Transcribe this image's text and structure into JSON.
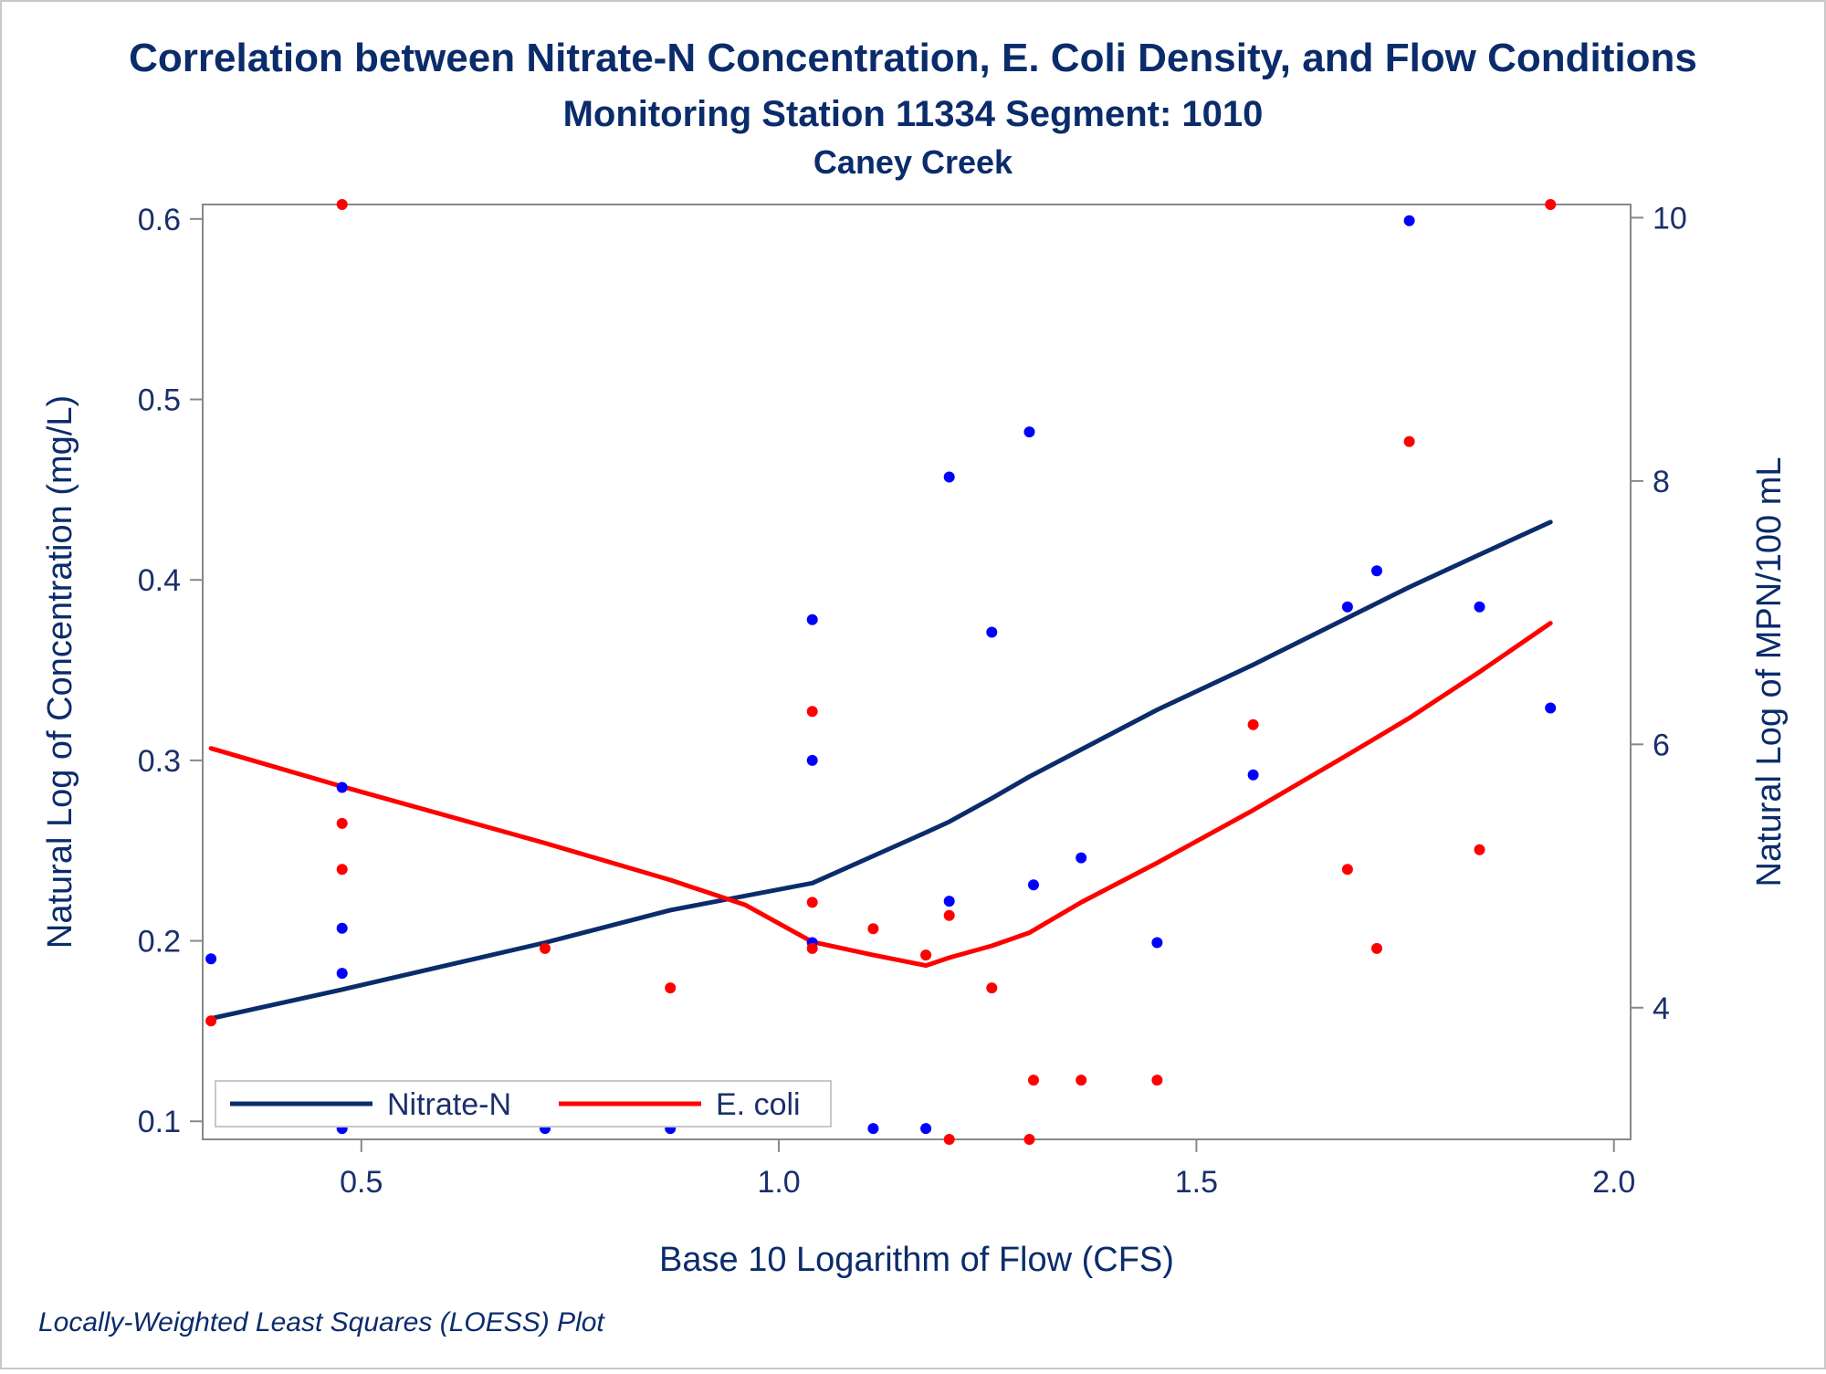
{
  "chart_data": {
    "type": "scatter",
    "title": "Correlation between Nitrate-N Concentration, E. Coli Density, and Flow Conditions",
    "subtitle": "Monitoring Station 11334 Segment: 1010",
    "subtitle2": "Caney Creek",
    "footnote": "Locally-Weighted Least Squares (LOESS) Plot",
    "xlabel": "Base 10 Logarithm of Flow (CFS)",
    "ylabel": "Natural Log of Concentration (mg/L)",
    "y2label": "Natural Log of MPN/100 mL",
    "xlim": [
      0.31,
      2.02
    ],
    "ylim": [
      0.09,
      0.608
    ],
    "y2lim": [
      3,
      10.1
    ],
    "xticks": [
      "0.5",
      "1.0",
      "1.5",
      "2.0"
    ],
    "xtick_values": [
      0.5,
      1.0,
      1.5,
      2.0
    ],
    "yticks": [
      "0.1",
      "0.2",
      "0.3",
      "0.4",
      "0.5",
      "0.6"
    ],
    "ytick_values": [
      0.1,
      0.2,
      0.3,
      0.4,
      0.5,
      0.6
    ],
    "y2ticks": [
      "4",
      "6",
      "8",
      "10"
    ],
    "y2tick_values": [
      4,
      6,
      8,
      10
    ],
    "grid": false,
    "legend_position": "bottom-left",
    "series": [
      {
        "name": "Nitrate-N",
        "axis": "left",
        "color": "#0000ff",
        "line_color": "#0b2c6b",
        "points": [
          [
            0.32,
            0.19
          ],
          [
            0.477,
            0.285
          ],
          [
            0.477,
            0.207
          ],
          [
            0.477,
            0.182
          ],
          [
            0.477,
            0.096
          ],
          [
            0.72,
            0.096
          ],
          [
            0.87,
            0.096
          ],
          [
            1.04,
            0.378
          ],
          [
            1.04,
            0.3
          ],
          [
            1.04,
            0.199
          ],
          [
            1.113,
            0.096
          ],
          [
            1.176,
            0.096
          ],
          [
            1.204,
            0.457
          ],
          [
            1.204,
            0.222
          ],
          [
            1.255,
            0.371
          ],
          [
            1.3,
            0.482
          ],
          [
            1.305,
            0.231
          ],
          [
            1.362,
            0.246
          ],
          [
            1.453,
            0.199
          ],
          [
            1.568,
            0.292
          ],
          [
            1.681,
            0.385
          ],
          [
            1.716,
            0.405
          ],
          [
            1.755,
            0.599
          ],
          [
            1.839,
            0.385
          ],
          [
            1.924,
            0.329
          ]
        ],
        "loess": [
          [
            0.32,
            0.157
          ],
          [
            0.477,
            0.173
          ],
          [
            0.72,
            0.199
          ],
          [
            0.87,
            0.217
          ],
          [
            1.04,
            0.232
          ],
          [
            1.113,
            0.247
          ],
          [
            1.176,
            0.26
          ],
          [
            1.204,
            0.266
          ],
          [
            1.255,
            0.279
          ],
          [
            1.3,
            0.291
          ],
          [
            1.362,
            0.306
          ],
          [
            1.453,
            0.328
          ],
          [
            1.568,
            0.353
          ],
          [
            1.681,
            0.379
          ],
          [
            1.755,
            0.396
          ],
          [
            1.839,
            0.414
          ],
          [
            1.924,
            0.432
          ]
        ]
      },
      {
        "name": "E. coli",
        "axis": "right",
        "color": "#ff0000",
        "line_color": "#ff0000",
        "points": [
          [
            0.32,
            3.9
          ],
          [
            0.477,
            10.1
          ],
          [
            0.477,
            5.4
          ],
          [
            0.477,
            5.05
          ],
          [
            0.72,
            4.45
          ],
          [
            0.87,
            4.15
          ],
          [
            1.04,
            6.25
          ],
          [
            1.04,
            4.8
          ],
          [
            1.04,
            4.45
          ],
          [
            1.113,
            4.6
          ],
          [
            1.176,
            4.4
          ],
          [
            1.204,
            4.7
          ],
          [
            1.204,
            3.0
          ],
          [
            1.255,
            4.15
          ],
          [
            1.3,
            3.0
          ],
          [
            1.305,
            3.45
          ],
          [
            1.362,
            3.45
          ],
          [
            1.453,
            3.45
          ],
          [
            1.568,
            6.15
          ],
          [
            1.681,
            5.05
          ],
          [
            1.716,
            4.45
          ],
          [
            1.755,
            8.3
          ],
          [
            1.839,
            5.2
          ],
          [
            1.924,
            10.1
          ]
        ],
        "loess": [
          [
            0.32,
            5.97
          ],
          [
            0.477,
            5.68
          ],
          [
            0.72,
            5.25
          ],
          [
            0.87,
            4.97
          ],
          [
            0.96,
            4.78
          ],
          [
            1.04,
            4.5
          ],
          [
            1.113,
            4.4
          ],
          [
            1.176,
            4.32
          ],
          [
            1.204,
            4.38
          ],
          [
            1.255,
            4.47
          ],
          [
            1.3,
            4.57
          ],
          [
            1.362,
            4.8
          ],
          [
            1.453,
            5.1
          ],
          [
            1.568,
            5.5
          ],
          [
            1.681,
            5.92
          ],
          [
            1.755,
            6.2
          ],
          [
            1.839,
            6.55
          ],
          [
            1.924,
            6.92
          ]
        ]
      }
    ]
  }
}
